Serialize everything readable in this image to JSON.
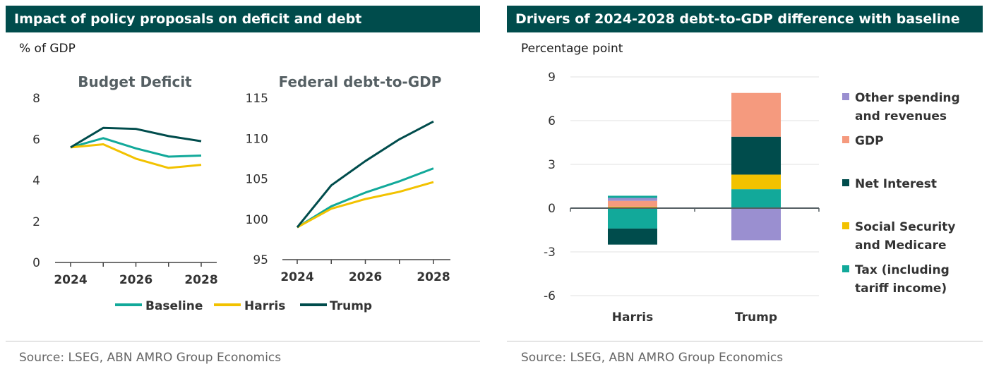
{
  "left_panel": {
    "title": "Impact of policy proposals on deficit and debt",
    "unit": "% of GDP",
    "source": "Source:  LSEG, ABN AMRO Group Economics"
  },
  "right_panel": {
    "title": "Drivers of 2024-2028 debt-to-GDP difference with baseline",
    "unit": "Percentage point",
    "source": "Source: LSEG, ABN AMRO Group Economics"
  },
  "colors": {
    "baseline": "#12a99a",
    "harris": "#f2c200",
    "trump": "#004c4c",
    "other": "#9a8fd0",
    "gdp": "#f59a7e",
    "net_interest": "#004c4c",
    "social_security": "#f2c200",
    "tax": "#12a99a"
  },
  "chart_data": [
    {
      "type": "line",
      "title": "Budget Deficit",
      "x": [
        2024,
        2025,
        2026,
        2027,
        2028
      ],
      "x_ticks": [
        "2024",
        "2026",
        "2028"
      ],
      "ylim": [
        0,
        8
      ],
      "y_ticks": [
        "0",
        "2",
        "4",
        "6",
        "8"
      ],
      "series": [
        {
          "name": "Baseline",
          "values": [
            5.6,
            6.05,
            5.55,
            5.15,
            5.2
          ]
        },
        {
          "name": "Harris",
          "values": [
            5.6,
            5.75,
            5.05,
            4.6,
            4.75
          ]
        },
        {
          "name": "Trump",
          "values": [
            5.6,
            6.55,
            6.5,
            6.15,
            5.9
          ]
        }
      ]
    },
    {
      "type": "line",
      "title": "Federal debt-to-GDP",
      "x": [
        2024,
        2025,
        2026,
        2027,
        2028
      ],
      "x_ticks": [
        "2024",
        "2026",
        "2028"
      ],
      "ylim": [
        95,
        115
      ],
      "y_ticks": [
        "95",
        "100",
        "105",
        "110",
        "115"
      ],
      "series": [
        {
          "name": "Baseline",
          "values": [
            99.0,
            101.6,
            103.3,
            104.7,
            106.3
          ]
        },
        {
          "name": "Harris",
          "values": [
            99.0,
            101.3,
            102.5,
            103.4,
            104.6
          ]
        },
        {
          "name": "Trump",
          "values": [
            99.0,
            104.2,
            107.2,
            109.9,
            112.1
          ]
        }
      ]
    },
    {
      "type": "bar",
      "stacked": true,
      "ylabel": "Percentage point",
      "categories": [
        "Harris",
        "Trump"
      ],
      "ylim": [
        -6,
        9
      ],
      "y_ticks": [
        "-6",
        "-3",
        "0",
        "3",
        "6",
        "9"
      ],
      "series": [
        {
          "name": "Tax (including tariff income)",
          "values": [
            -1.4,
            1.3
          ]
        },
        {
          "name": "Social Security and Medicare",
          "values": [
            0.1,
            1.0
          ]
        },
        {
          "name": "Net Interest",
          "values": [
            -1.1,
            2.6
          ]
        },
        {
          "name": "GDP",
          "values": [
            0.4,
            3.0
          ]
        },
        {
          "name": "Other spending and revenues",
          "values": [
            0.2,
            -2.2
          ]
        }
      ],
      "extra_segments": [
        {
          "series": "Tax (including tariff income)",
          "category": "Harris",
          "value": 0.15
        }
      ],
      "legend": "right"
    }
  ]
}
